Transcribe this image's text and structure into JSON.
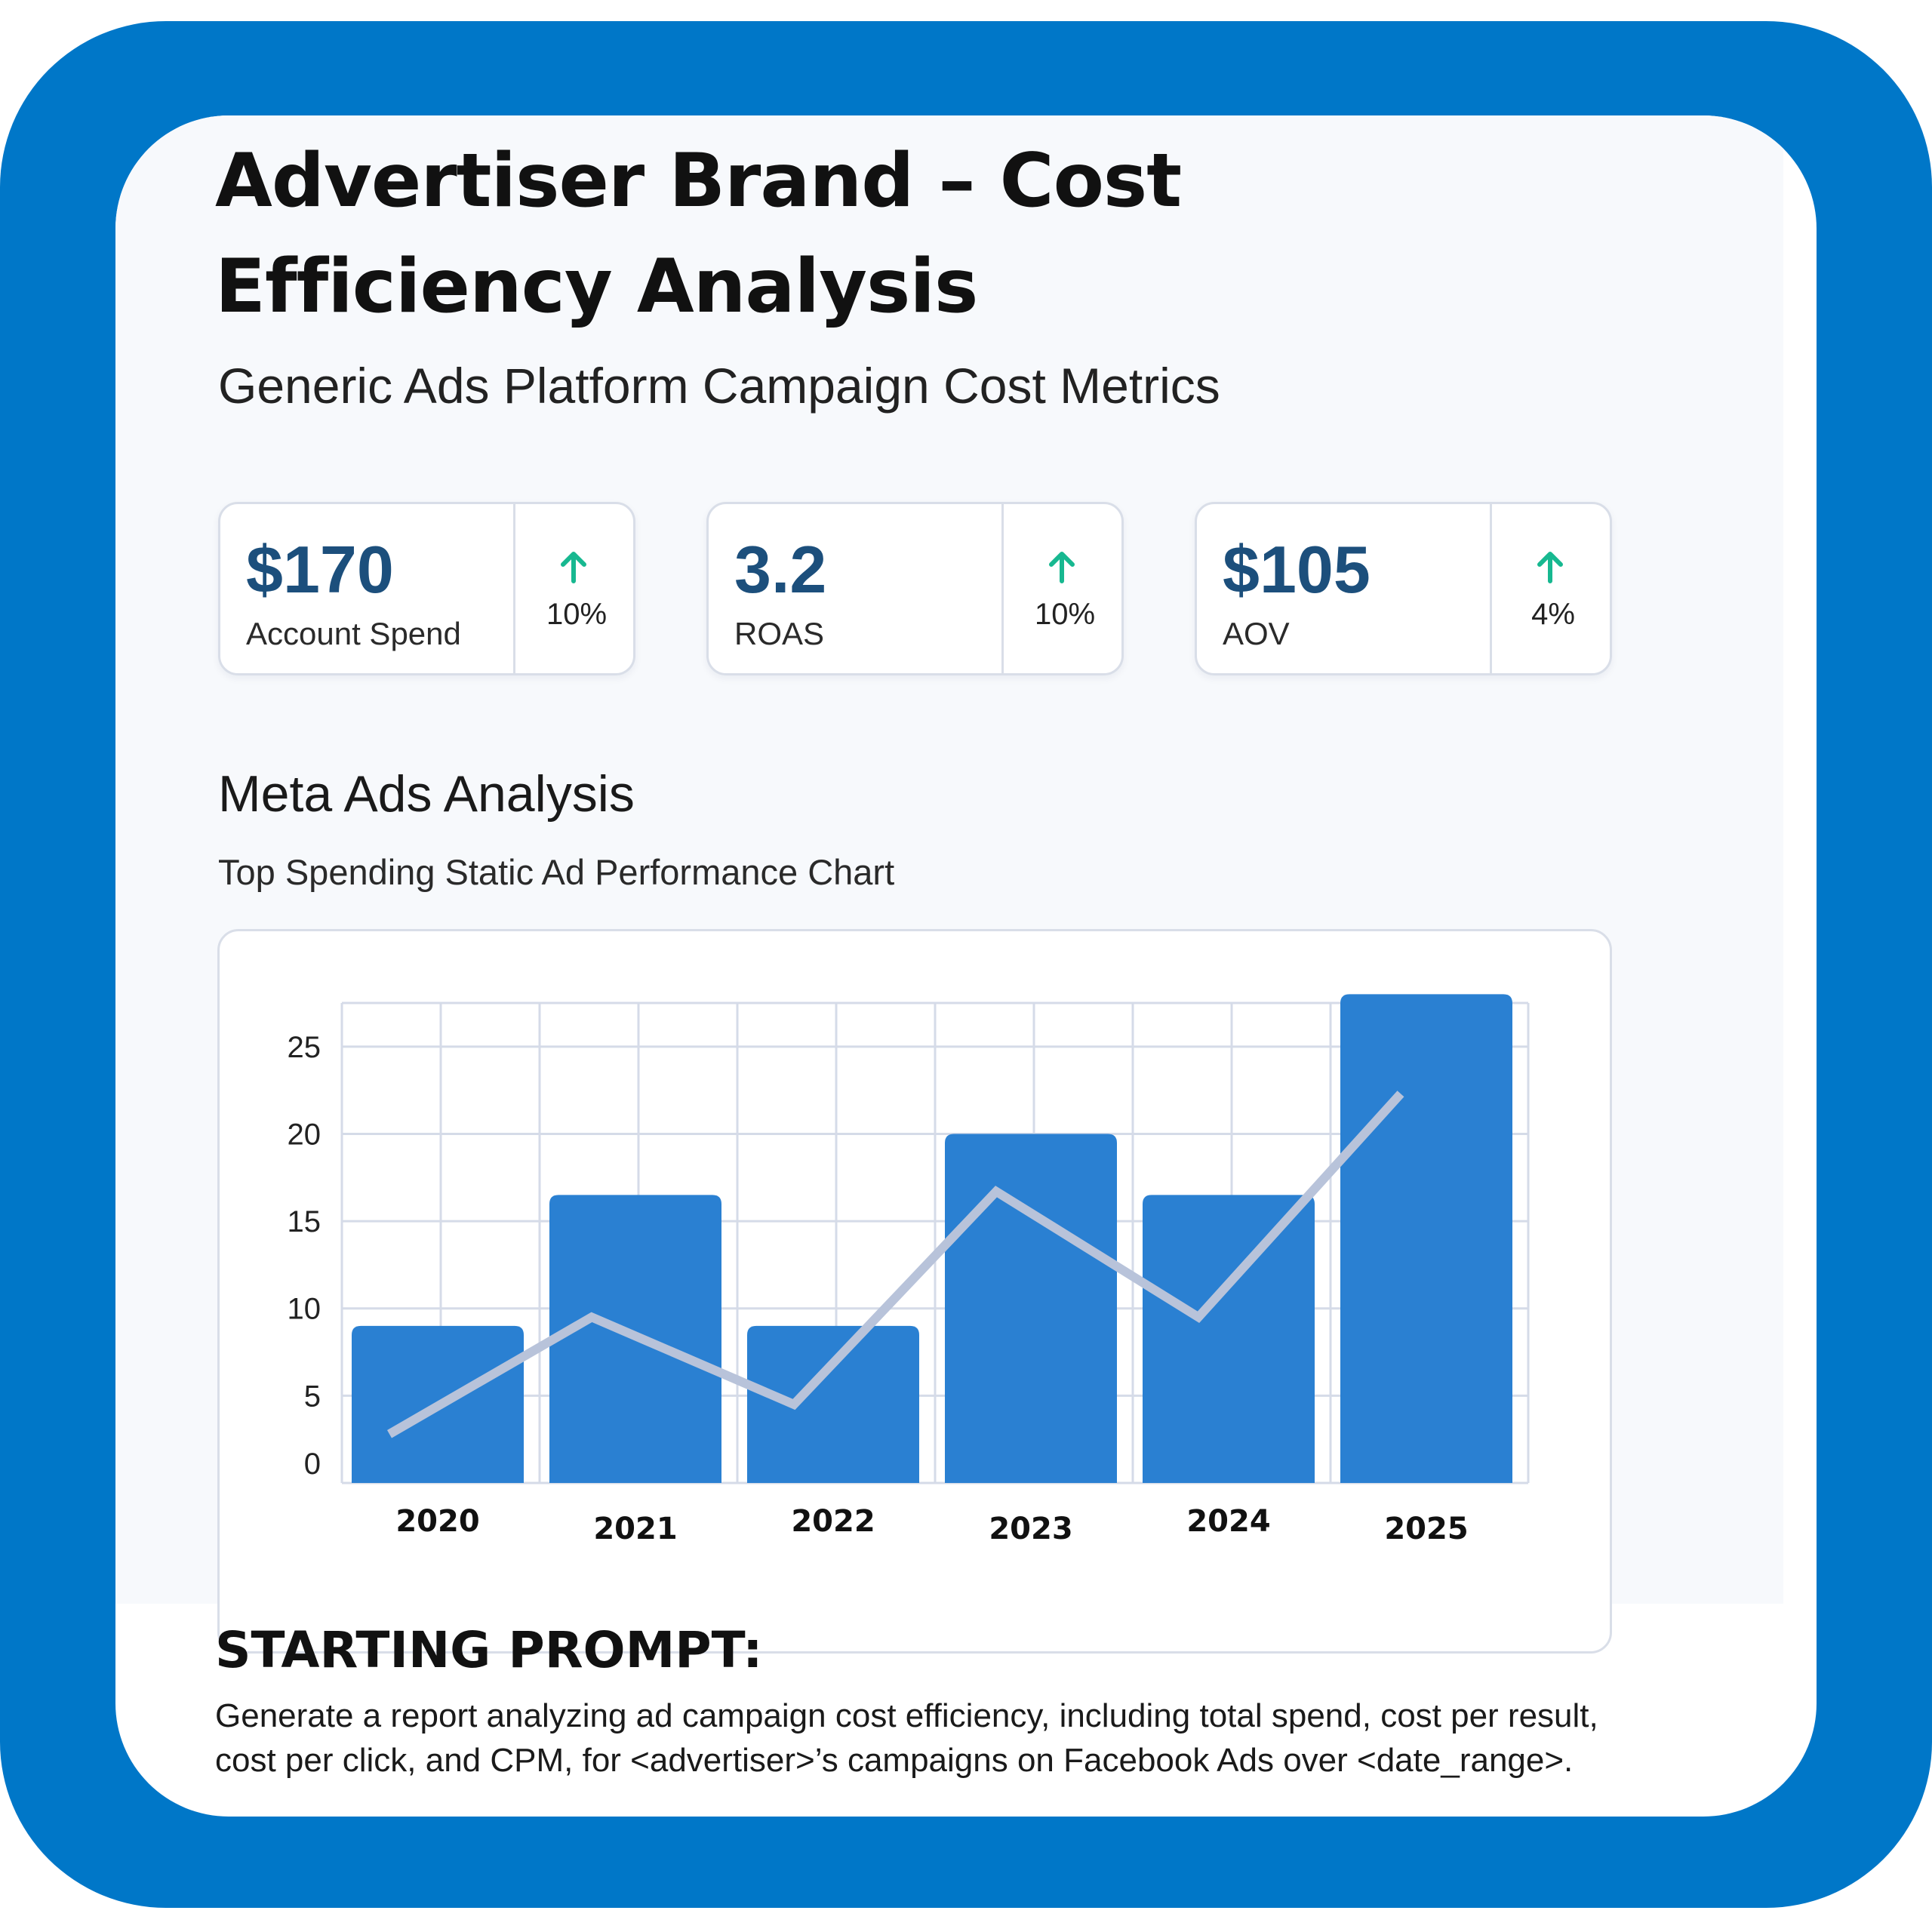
{
  "title_lines": [
    "Advertiser Brand – Cost",
    "Efficiency Analysis"
  ],
  "subtitle": "Generic Ads Platform Campaign Cost Metrics",
  "kpis": [
    {
      "value": "$170",
      "label": "Account Spend",
      "change": "10%",
      "trend": "up"
    },
    {
      "value": "3.2",
      "label": "ROAS",
      "change": "10%",
      "trend": "up"
    },
    {
      "value": "$105",
      "label": "AOV",
      "change": "4%",
      "trend": "up"
    }
  ],
  "section_title": "Meta Ads Analysis",
  "chart_subtitle": "Top Spending Static Ad Performance Chart",
  "prompt": {
    "heading": "STARTING PROMPT:",
    "lines": [
      "Generate a report analyzing ad campaign cost efficiency, including total spend, cost per result,",
      "cost per click, and CPM, for <advertiser>’s campaigns on Facebook Ads over <date_range>."
    ]
  },
  "colors": {
    "frame": "#0077c8",
    "bar": "#2a80d2",
    "line": "#b8c3da",
    "grid": "#d5dbe8",
    "arrow": "#17b890",
    "kpi_value": "#1c4f7c"
  },
  "icons": {
    "trend_up": "arrow-up-icon"
  },
  "chart_data": {
    "type": "bar",
    "categories": [
      "2020",
      "2021",
      "2022",
      "2023",
      "2024",
      "2025"
    ],
    "series": [
      {
        "type": "bar",
        "values": [
          9,
          16.5,
          9,
          20,
          16.5,
          28
        ]
      },
      {
        "type": "line",
        "values": [
          2.8,
          9.5,
          4.5,
          16.7,
          9.5,
          22.3
        ]
      }
    ],
    "yticks": [
      0,
      5,
      10,
      15,
      20,
      25
    ],
    "ylim": [
      0,
      27.5
    ],
    "grid": true,
    "legend": "none",
    "title": "",
    "xlabel": "",
    "ylabel": ""
  }
}
